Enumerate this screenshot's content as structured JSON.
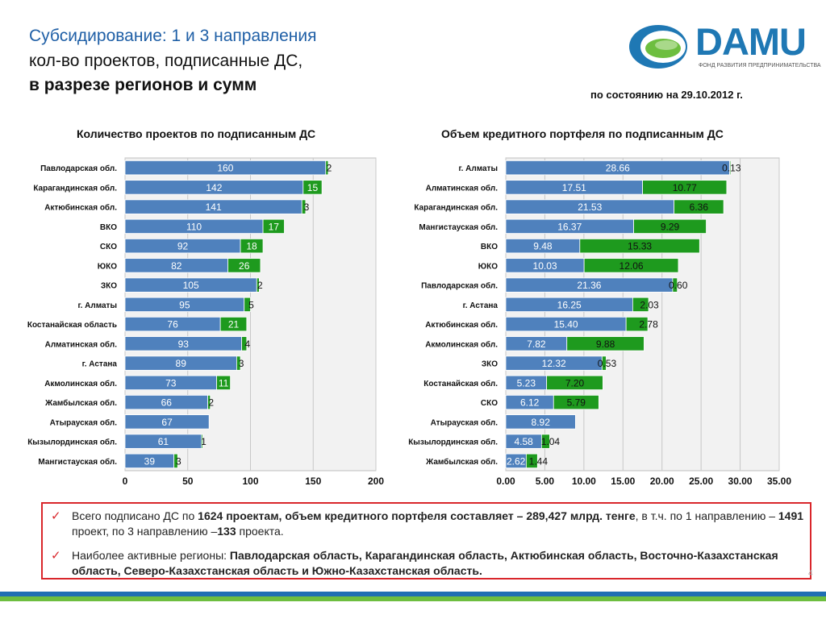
{
  "header": {
    "title_line1": "Субсидирование: 1 и 3 направления",
    "title_line2": "кол-во проектов, подписанные ДС,",
    "title_line3": "в разрезе регионов и сумм",
    "date_note": "по состоянию на 29.10.2012 г."
  },
  "logo": {
    "text": "DAMU",
    "subtitle": "ФОНД РАЗВИТИЯ ПРЕДПРИНИМАТЕЛЬСТВА"
  },
  "colors": {
    "bar_blue": "#4f81bd",
    "bar_green": "#1e9a1e",
    "accent_red": "#d9262b",
    "title_blue": "#1f5fa6"
  },
  "chart_data": [
    {
      "type": "bar",
      "title": "Количество проектов по подписанным ДС",
      "orientation": "horizontal",
      "stacked": true,
      "categories": [
        "Павлодарская обл.",
        "Карагандинская обл.",
        "Актюбинская обл.",
        "ВКО",
        "СКО",
        "ЮКО",
        "ЗКО",
        "г. Алматы",
        "Костанайская область",
        "Алматинская обл.",
        "г. Астана",
        "Акмолинская обл.",
        "Жамбылская обл.",
        "Атырауская обл.",
        "Кызылординская обл.",
        "Мангистауская обл."
      ],
      "series": [
        {
          "values": [
            160,
            142,
            141,
            110,
            92,
            82,
            105,
            95,
            76,
            93,
            89,
            73,
            66,
            67,
            61,
            39
          ]
        },
        {
          "values": [
            2,
            15,
            3,
            17,
            18,
            26,
            2,
            5,
            21,
            4,
            3,
            11,
            2,
            null,
            1,
            3
          ]
        }
      ],
      "xlim": [
        0,
        200
      ],
      "xticks": [
        "0",
        "50",
        "100",
        "150",
        "200"
      ],
      "grid": true
    },
    {
      "type": "bar",
      "title": "Объем кредитного портфеля по подписанным ДС",
      "orientation": "horizontal",
      "stacked": true,
      "categories": [
        "г. Алматы",
        "Алматинская обл.",
        "Карагандинская обл.",
        "Мангистауская обл.",
        "ВКО",
        "ЮКО",
        "Павлодарская обл.",
        "г. Астана",
        "Актюбинская обл.",
        "Акмолинская обл.",
        "ЗКО",
        "Костанайская обл.",
        "СКО",
        "Атырауская обл.",
        "Кызылординская обл.",
        "Жамбылская обл."
      ],
      "series": [
        {
          "values": [
            "28.66",
            "17.51",
            "21.53",
            "16.37",
            "9.48",
            "10.03",
            "21.36",
            "16.25",
            "15.40",
            "7.82",
            "12.32",
            "5.23",
            "6.12",
            "8.92",
            "4.58",
            "2.62"
          ]
        },
        {
          "values": [
            "0.13",
            "10.77",
            "6.36",
            "9.29",
            "15.33",
            "12.06",
            "0.60",
            "2.03",
            "2.78",
            "9.88",
            "0.53",
            "7.20",
            "5.79",
            null,
            "1.04",
            "1.44"
          ]
        }
      ],
      "xlim": [
        0,
        35
      ],
      "xticks": [
        "0.00",
        "5.00",
        "10.00",
        "15.00",
        "20.00",
        "25.00",
        "30.00",
        "35.00"
      ],
      "grid": true
    }
  ],
  "summary": {
    "item1_pre": " Всего подписано ДС по ",
    "item1_bold1": "1624 проектам, объем кредитного портфеля составляет – 289,427 млрд. тенге",
    "item1_mid": ", в т.ч. по 1 направлению – ",
    "item1_bold2": "1491",
    "item1_mid2": " проект, по 3 направлению –",
    "item1_bold3": "133",
    "item1_post": " проекта.",
    "item2_pre": "Наиболее активные регионы: ",
    "item2_bold": "Павлодарская область, Карагандинская область, Актюбинская область, Восточно-Казахстанская область, Северо-Казахстанская область и Южно-Казахстанская область.",
    "check_glyph": "✓"
  },
  "slide_number": "4"
}
